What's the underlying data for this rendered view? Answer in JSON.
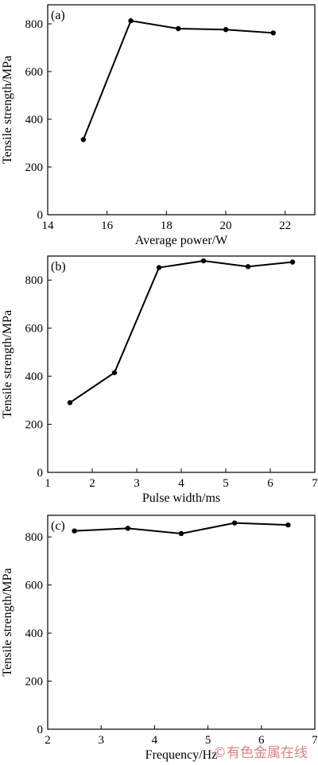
{
  "chart_data": [
    {
      "type": "line",
      "panel_label": "(a)",
      "xlabel": "Average power/W",
      "ylabel": "Tensile strength/MPa",
      "xlim": [
        14,
        23
      ],
      "ylim": [
        0,
        880
      ],
      "xticks": [
        14,
        16,
        18,
        20,
        22
      ],
      "yticks": [
        0,
        200,
        400,
        600,
        800
      ],
      "grid": false,
      "series": [
        {
          "x": [
            15.2,
            16.8,
            18.4,
            20.0,
            21.6
          ],
          "y": [
            315,
            813,
            780,
            776,
            762
          ]
        }
      ]
    },
    {
      "type": "line",
      "panel_label": "(b)",
      "xlabel": "Pulse width/ms",
      "ylabel": "Tensile strength/MPa",
      "xlim": [
        1,
        7
      ],
      "ylim": [
        0,
        900
      ],
      "xticks": [
        1,
        2,
        3,
        4,
        5,
        6,
        7
      ],
      "yticks": [
        0,
        200,
        400,
        600,
        800
      ],
      "grid": false,
      "series": [
        {
          "x": [
            1.5,
            2.5,
            3.5,
            4.5,
            5.5,
            6.5
          ],
          "y": [
            290,
            415,
            852,
            880,
            856,
            875
          ]
        }
      ]
    },
    {
      "type": "line",
      "panel_label": "(c)",
      "xlabel": "Frequency/Hz",
      "ylabel": "Tensile strength/MPa",
      "xlim": [
        2,
        7
      ],
      "ylim": [
        0,
        890
      ],
      "xticks": [
        2,
        3,
        4,
        5,
        6,
        7
      ],
      "yticks": [
        0,
        200,
        400,
        600,
        800
      ],
      "grid": false,
      "series": [
        {
          "x": [
            2.5,
            3.5,
            4.5,
            5.5,
            6.5
          ],
          "y": [
            825,
            836,
            814,
            858,
            850
          ]
        }
      ]
    }
  ],
  "watermark": "©有色金属在线"
}
